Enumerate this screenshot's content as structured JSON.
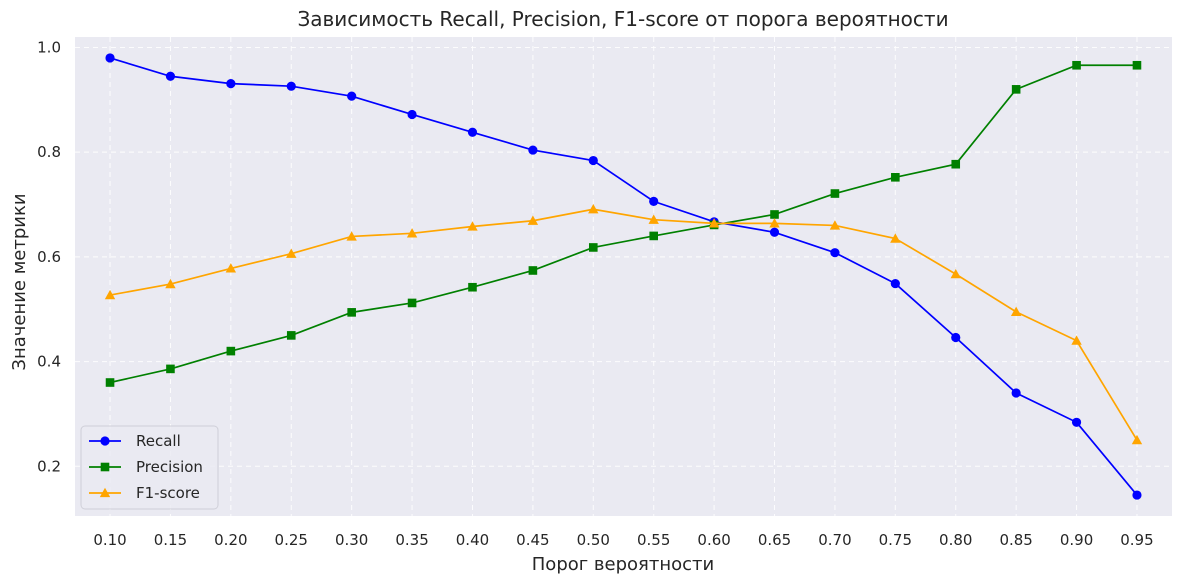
{
  "chart_data": {
    "type": "line",
    "title": "Зависимость Recall, Precision, F1-score от порога вероятности",
    "xlabel": "Порог вероятности",
    "ylabel": "Значение метрики",
    "x": [
      "0.10",
      "0.15",
      "0.20",
      "0.25",
      "0.30",
      "0.35",
      "0.40",
      "0.45",
      "0.50",
      "0.55",
      "0.60",
      "0.65",
      "0.70",
      "0.75",
      "0.80",
      "0.85",
      "0.90",
      "0.95"
    ],
    "xlim": [
      0.071,
      0.979
    ],
    "ylim": [
      0.105,
      1.02
    ],
    "yticks": [
      "0.2",
      "0.4",
      "0.6",
      "0.8",
      "1.0"
    ],
    "grid": true,
    "legend_position": "lower-left",
    "series": [
      {
        "name": "Recall",
        "color": "#0000ff",
        "marker": "circle",
        "values": [
          0.98,
          0.945,
          0.931,
          0.926,
          0.907,
          0.872,
          0.838,
          0.804,
          0.784,
          0.706,
          0.667,
          0.647,
          0.608,
          0.549,
          0.446,
          0.34,
          0.284,
          0.145
        ]
      },
      {
        "name": "Precision",
        "color": "#008000",
        "marker": "square",
        "values": [
          0.36,
          0.386,
          0.42,
          0.45,
          0.494,
          0.512,
          0.542,
          0.574,
          0.618,
          0.64,
          0.661,
          0.681,
          0.721,
          0.752,
          0.777,
          0.92,
          0.966,
          0.966
        ]
      },
      {
        "name": "F1-score",
        "color": "#ffa500",
        "marker": "triangle",
        "values": [
          0.527,
          0.548,
          0.578,
          0.606,
          0.639,
          0.645,
          0.658,
          0.669,
          0.691,
          0.671,
          0.664,
          0.664,
          0.66,
          0.635,
          0.567,
          0.495,
          0.44,
          0.25
        ]
      }
    ]
  }
}
